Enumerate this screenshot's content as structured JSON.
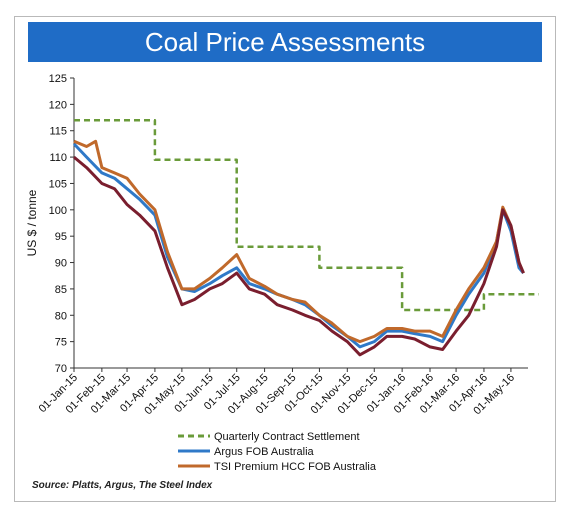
{
  "chart_data": {
    "type": "line",
    "title": "Coal Price Assessments",
    "ylabel": "US $ / tonne",
    "xlabel": "",
    "ylim": [
      70,
      125
    ],
    "yticks": [
      70,
      75,
      80,
      85,
      90,
      95,
      100,
      105,
      110,
      115,
      120,
      125
    ],
    "x_start": "01-Jan-15",
    "x_end": "20-May-16",
    "xticks": [
      "01-Jan-15",
      "01-Feb-15",
      "01-Mar-15",
      "01-Apr-15",
      "01-May-15",
      "01-Jun-15",
      "01-Jul-15",
      "01-Aug-15",
      "01-Sep-15",
      "01-Oct-15",
      "01-Nov-15",
      "01-Dec-15",
      "01-Jan-16",
      "01-Feb-16",
      "01-Mar-16",
      "01-Apr-16",
      "01-May-16"
    ],
    "legend_position": "bottom",
    "grid": false,
    "source": "Source: Platts, Argus, The Steel Index",
    "series": [
      {
        "name": "Quarterly Contract Settlement",
        "color": "#6a9b3a",
        "style": "dashed",
        "points": [
          [
            "01-Jan-15",
            117
          ],
          [
            "01-Apr-15",
            117
          ],
          [
            "01-Apr-15",
            109.5
          ],
          [
            "01-Jul-15",
            109.5
          ],
          [
            "01-Jul-15",
            93
          ],
          [
            "01-Oct-15",
            93
          ],
          [
            "01-Oct-15",
            89
          ],
          [
            "01-Jan-16",
            89
          ],
          [
            "01-Jan-16",
            81
          ],
          [
            "01-Apr-16",
            81
          ],
          [
            "01-Apr-16",
            84
          ],
          [
            "01-Jun-16",
            84
          ]
        ]
      },
      {
        "name": "Argus FOB Australia",
        "color": "#2f79c8",
        "style": "solid",
        "points": [
          [
            "01-Jan-15",
            112.5
          ],
          [
            "15-Jan-15",
            110
          ],
          [
            "01-Feb-15",
            107
          ],
          [
            "15-Feb-15",
            106
          ],
          [
            "01-Mar-15",
            104
          ],
          [
            "15-Mar-15",
            102
          ],
          [
            "01-Apr-15",
            99
          ],
          [
            "15-Apr-15",
            91
          ],
          [
            "01-May-15",
            85
          ],
          [
            "15-May-15",
            84.5
          ],
          [
            "01-Jun-15",
            86
          ],
          [
            "15-Jun-15",
            87.5
          ],
          [
            "01-Jul-15",
            89
          ],
          [
            "15-Jul-15",
            86
          ],
          [
            "01-Aug-15",
            85
          ],
          [
            "15-Aug-15",
            84
          ],
          [
            "01-Sep-15",
            83
          ],
          [
            "15-Sep-15",
            82
          ],
          [
            "01-Oct-15",
            80
          ],
          [
            "15-Oct-15",
            78
          ],
          [
            "01-Nov-15",
            76
          ],
          [
            "15-Nov-15",
            74
          ],
          [
            "01-Dec-15",
            75
          ],
          [
            "15-Dec-15",
            77
          ],
          [
            "01-Jan-16",
            77
          ],
          [
            "15-Jan-16",
            76.5
          ],
          [
            "01-Feb-16",
            76
          ],
          [
            "15-Feb-16",
            75
          ],
          [
            "01-Mar-16",
            80
          ],
          [
            "15-Mar-16",
            84
          ],
          [
            "01-Apr-16",
            88
          ],
          [
            "15-Apr-16",
            94
          ],
          [
            "22-Apr-16",
            100
          ],
          [
            "01-May-16",
            96
          ],
          [
            "10-May-16",
            89
          ],
          [
            "15-May-16",
            88
          ]
        ]
      },
      {
        "name": "TSI Premium HCC FOB Australia",
        "color": "#c0692b",
        "style": "solid",
        "points": [
          [
            "01-Jan-15",
            113
          ],
          [
            "15-Jan-15",
            112
          ],
          [
            "25-Jan-15",
            113
          ],
          [
            "01-Feb-15",
            108
          ],
          [
            "15-Feb-15",
            107
          ],
          [
            "01-Mar-15",
            106
          ],
          [
            "15-Mar-15",
            103
          ],
          [
            "01-Apr-15",
            100
          ],
          [
            "15-Apr-15",
            92
          ],
          [
            "01-May-15",
            85
          ],
          [
            "15-May-15",
            85
          ],
          [
            "01-Jun-15",
            87
          ],
          [
            "15-Jun-15",
            89
          ],
          [
            "01-Jul-15",
            91.5
          ],
          [
            "15-Jul-15",
            87
          ],
          [
            "01-Aug-15",
            85.5
          ],
          [
            "15-Aug-15",
            84
          ],
          [
            "01-Sep-15",
            83
          ],
          [
            "15-Sep-15",
            82.5
          ],
          [
            "01-Oct-15",
            80
          ],
          [
            "15-Oct-15",
            78.5
          ],
          [
            "01-Nov-15",
            76
          ],
          [
            "15-Nov-15",
            75
          ],
          [
            "01-Dec-15",
            76
          ],
          [
            "15-Dec-15",
            77.5
          ],
          [
            "01-Jan-16",
            77.5
          ],
          [
            "15-Jan-16",
            77
          ],
          [
            "01-Feb-16",
            77
          ],
          [
            "15-Feb-16",
            76
          ],
          [
            "01-Mar-16",
            81
          ],
          [
            "15-Mar-16",
            85
          ],
          [
            "01-Apr-16",
            89
          ],
          [
            "15-Apr-16",
            94
          ],
          [
            "22-Apr-16",
            100.5
          ],
          [
            "01-May-16",
            97
          ],
          [
            "10-May-16",
            90
          ],
          [
            "15-May-16",
            88
          ]
        ]
      },
      {
        "name": "",
        "color": "#7a1e2e",
        "style": "solid",
        "points": [
          [
            "01-Jan-15",
            110
          ],
          [
            "15-Jan-15",
            108
          ],
          [
            "01-Feb-15",
            105
          ],
          [
            "15-Feb-15",
            104
          ],
          [
            "01-Mar-15",
            101
          ],
          [
            "15-Mar-15",
            99
          ],
          [
            "01-Apr-15",
            96
          ],
          [
            "15-Apr-15",
            89
          ],
          [
            "01-May-15",
            82
          ],
          [
            "15-May-15",
            83
          ],
          [
            "01-Jun-15",
            85
          ],
          [
            "15-Jun-15",
            86
          ],
          [
            "01-Jul-15",
            88
          ],
          [
            "15-Jul-15",
            85
          ],
          [
            "01-Aug-15",
            84
          ],
          [
            "15-Aug-15",
            82
          ],
          [
            "01-Sep-15",
            81
          ],
          [
            "15-Sep-15",
            80
          ],
          [
            "01-Oct-15",
            79
          ],
          [
            "15-Oct-15",
            77
          ],
          [
            "01-Nov-15",
            75
          ],
          [
            "15-Nov-15",
            72.5
          ],
          [
            "01-Dec-15",
            74
          ],
          [
            "15-Dec-15",
            76
          ],
          [
            "01-Jan-16",
            76
          ],
          [
            "15-Jan-16",
            75.5
          ],
          [
            "01-Feb-16",
            74
          ],
          [
            "15-Feb-16",
            73.5
          ],
          [
            "01-Mar-16",
            77
          ],
          [
            "15-Mar-16",
            80
          ],
          [
            "01-Apr-16",
            86
          ],
          [
            "15-Apr-16",
            93
          ],
          [
            "22-Apr-16",
            100
          ],
          [
            "01-May-16",
            97
          ],
          [
            "10-May-16",
            90
          ],
          [
            "15-May-16",
            88
          ]
        ]
      }
    ]
  }
}
